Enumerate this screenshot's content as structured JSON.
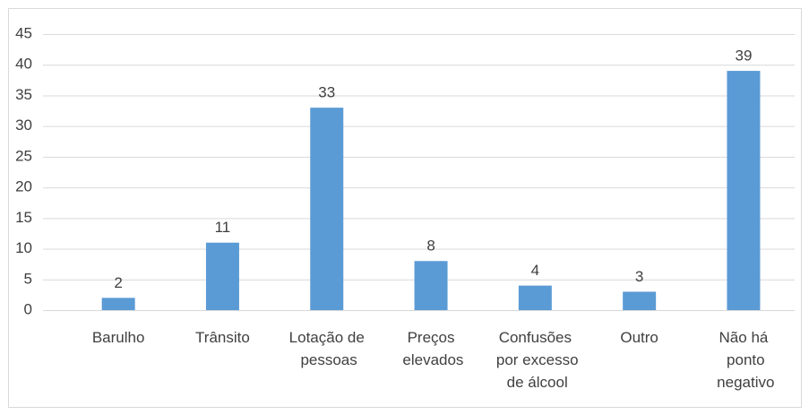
{
  "chart_data": {
    "type": "bar",
    "categories": [
      "Barulho",
      "Trânsito",
      "Lotação de pessoas",
      "Preços elevados",
      "Confusões por excesso de álcool",
      "Outro",
      "Não há ponto negativo"
    ],
    "values": [
      2,
      11,
      33,
      8,
      4,
      3,
      39
    ],
    "color": "#5b9bd5",
    "ylim": [
      0,
      45
    ],
    "yticks": [
      0,
      5,
      10,
      15,
      20,
      25,
      30,
      35,
      40,
      45
    ],
    "grid": true
  }
}
